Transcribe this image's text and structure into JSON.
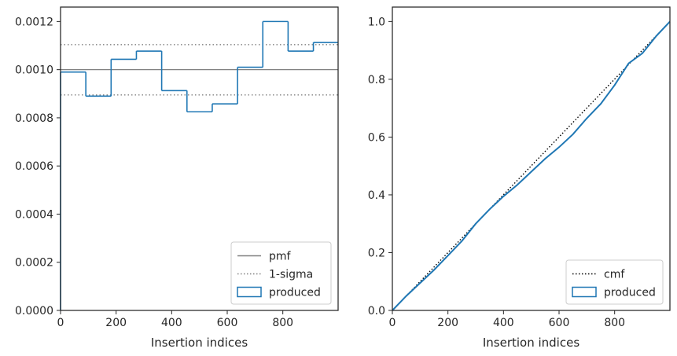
{
  "chart_data": [
    {
      "type": "histogram",
      "xlabel": "Insertion indices",
      "ylabel": "",
      "xlim": [
        0,
        999
      ],
      "ylim": [
        0,
        0.00126
      ],
      "xticks": [
        0,
        200,
        400,
        600,
        800
      ],
      "xtick_labels": [
        "0",
        "200",
        "400",
        "600",
        "800"
      ],
      "yticks": [
        0,
        0.0002,
        0.0004,
        0.0006,
        0.0008,
        0.001,
        0.0012
      ],
      "ytick_labels": [
        "0.0000",
        "0.0002",
        "0.0004",
        "0.0006",
        "0.0008",
        "0.0010",
        "0.0012"
      ],
      "bin_edges": [
        0,
        91,
        182,
        273,
        364,
        455,
        546,
        637,
        728,
        819,
        910,
        999
      ],
      "series": [
        {
          "name": "produced",
          "kind": "step",
          "color": "#1f77b4",
          "values": [
            0.00099,
            0.00089,
            0.001043,
            0.001077,
            0.000913,
            0.000825,
            0.000858,
            0.00101,
            0.0012,
            0.001077,
            0.001113
          ]
        }
      ],
      "hlines": [
        {
          "name": "pmf",
          "y": 0.001,
          "color": "#808080",
          "style": "solid"
        },
        {
          "name": "1-sigma",
          "y": 0.001104,
          "color": "#808080",
          "style": "dotted"
        },
        {
          "name": "1-sigma",
          "y": 0.000895,
          "color": "#808080",
          "style": "dotted",
          "legend": false
        }
      ],
      "legend": {
        "position": "lower-right",
        "entries": [
          {
            "label": "pmf",
            "style": "line-solid",
            "color": "#808080"
          },
          {
            "label": "1-sigma",
            "style": "line-dotted",
            "color": "#808080"
          },
          {
            "label": "produced",
            "style": "patch",
            "color": "#1f77b4"
          }
        ]
      },
      "grid": false
    },
    {
      "type": "line",
      "xlabel": "Insertion indices",
      "ylabel": "",
      "xlim": [
        0,
        999
      ],
      "ylim": [
        0,
        1.05
      ],
      "xticks": [
        0,
        200,
        400,
        600,
        800
      ],
      "xtick_labels": [
        "0",
        "200",
        "400",
        "600",
        "800"
      ],
      "yticks": [
        0,
        0.2,
        0.4,
        0.6,
        0.8,
        1.0
      ],
      "ytick_labels": [
        "0.0",
        "0.2",
        "0.4",
        "0.6",
        "0.8",
        "1.0"
      ],
      "series": [
        {
          "name": "cmf",
          "style": "dotted",
          "color": "#000000",
          "x": [
            0,
            999
          ],
          "y": [
            0,
            1.0
          ]
        },
        {
          "name": "produced",
          "style": "solid",
          "color": "#1f77b4",
          "x": [
            0,
            50,
            100,
            150,
            200,
            250,
            300,
            350,
            400,
            450,
            500,
            550,
            600,
            650,
            700,
            750,
            800,
            850,
            900,
            950,
            999
          ],
          "y": [
            0,
            0.05,
            0.095,
            0.14,
            0.19,
            0.24,
            0.3,
            0.35,
            0.395,
            0.435,
            0.48,
            0.525,
            0.565,
            0.61,
            0.665,
            0.715,
            0.78,
            0.855,
            0.89,
            0.95,
            1.0
          ]
        }
      ],
      "legend": {
        "position": "lower-right",
        "entries": [
          {
            "label": "cmf",
            "style": "line-dotted",
            "color": "#000000"
          },
          {
            "label": "produced",
            "style": "patch",
            "color": "#1f77b4"
          }
        ]
      },
      "grid": false
    }
  ]
}
